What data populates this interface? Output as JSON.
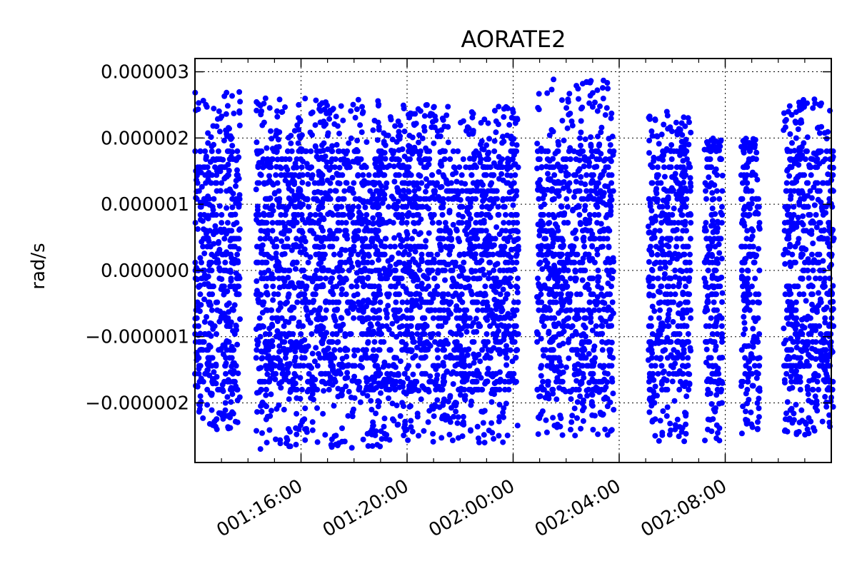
{
  "chart_data": {
    "type": "scatter",
    "title": "AORATE2",
    "xlabel": "",
    "ylabel": "rad/s",
    "grid": true,
    "marker_color": "#0000ff",
    "x_ticks": [
      {
        "value": 4,
        "label": "001:16:00"
      },
      {
        "value": 8,
        "label": "001:20:00"
      },
      {
        "value": 12,
        "label": "002:00:00"
      },
      {
        "value": 16,
        "label": "002:04:00"
      },
      {
        "value": 20,
        "label": "002:08:00"
      }
    ],
    "y_ticks": [
      {
        "value": -2e-06,
        "label": "−0.000002"
      },
      {
        "value": -1e-06,
        "label": "−0.000001"
      },
      {
        "value": 0.0,
        "label": "0.000000"
      },
      {
        "value": 1e-06,
        "label": "0.000001"
      },
      {
        "value": 2e-06,
        "label": "0.000002"
      },
      {
        "value": 3e-06,
        "label": "0.000003"
      }
    ],
    "ylim": [
      -2.9e-06,
      3.2e-06
    ],
    "clusters": [
      {
        "x_start": 0.0,
        "x_end": 1.7,
        "y_min": -2.4e-06,
        "y_max": 2.7e-06
      },
      {
        "x_start": 2.3,
        "x_end": 7.0,
        "y_min": -2.7e-06,
        "y_max": 2.6e-06
      },
      {
        "x_start": 6.9,
        "x_end": 12.2,
        "y_min": -2.6e-06,
        "y_max": 2.5e-06
      },
      {
        "x_start": 12.9,
        "x_end": 15.8,
        "y_min": -2.5e-06,
        "y_max": 2.9e-06
      },
      {
        "x_start": 17.1,
        "x_end": 18.7,
        "y_min": -2.6e-06,
        "y_max": 2.4e-06
      },
      {
        "x_start": 19.2,
        "x_end": 19.9,
        "y_min": -2.6e-06,
        "y_max": 2e-06
      },
      {
        "x_start": 20.6,
        "x_end": 21.3,
        "y_min": -2.5e-06,
        "y_max": 2e-06
      },
      {
        "x_start": 22.2,
        "x_end": 24.1,
        "y_min": -2.5e-06,
        "y_max": 2.6e-06
      }
    ]
  }
}
